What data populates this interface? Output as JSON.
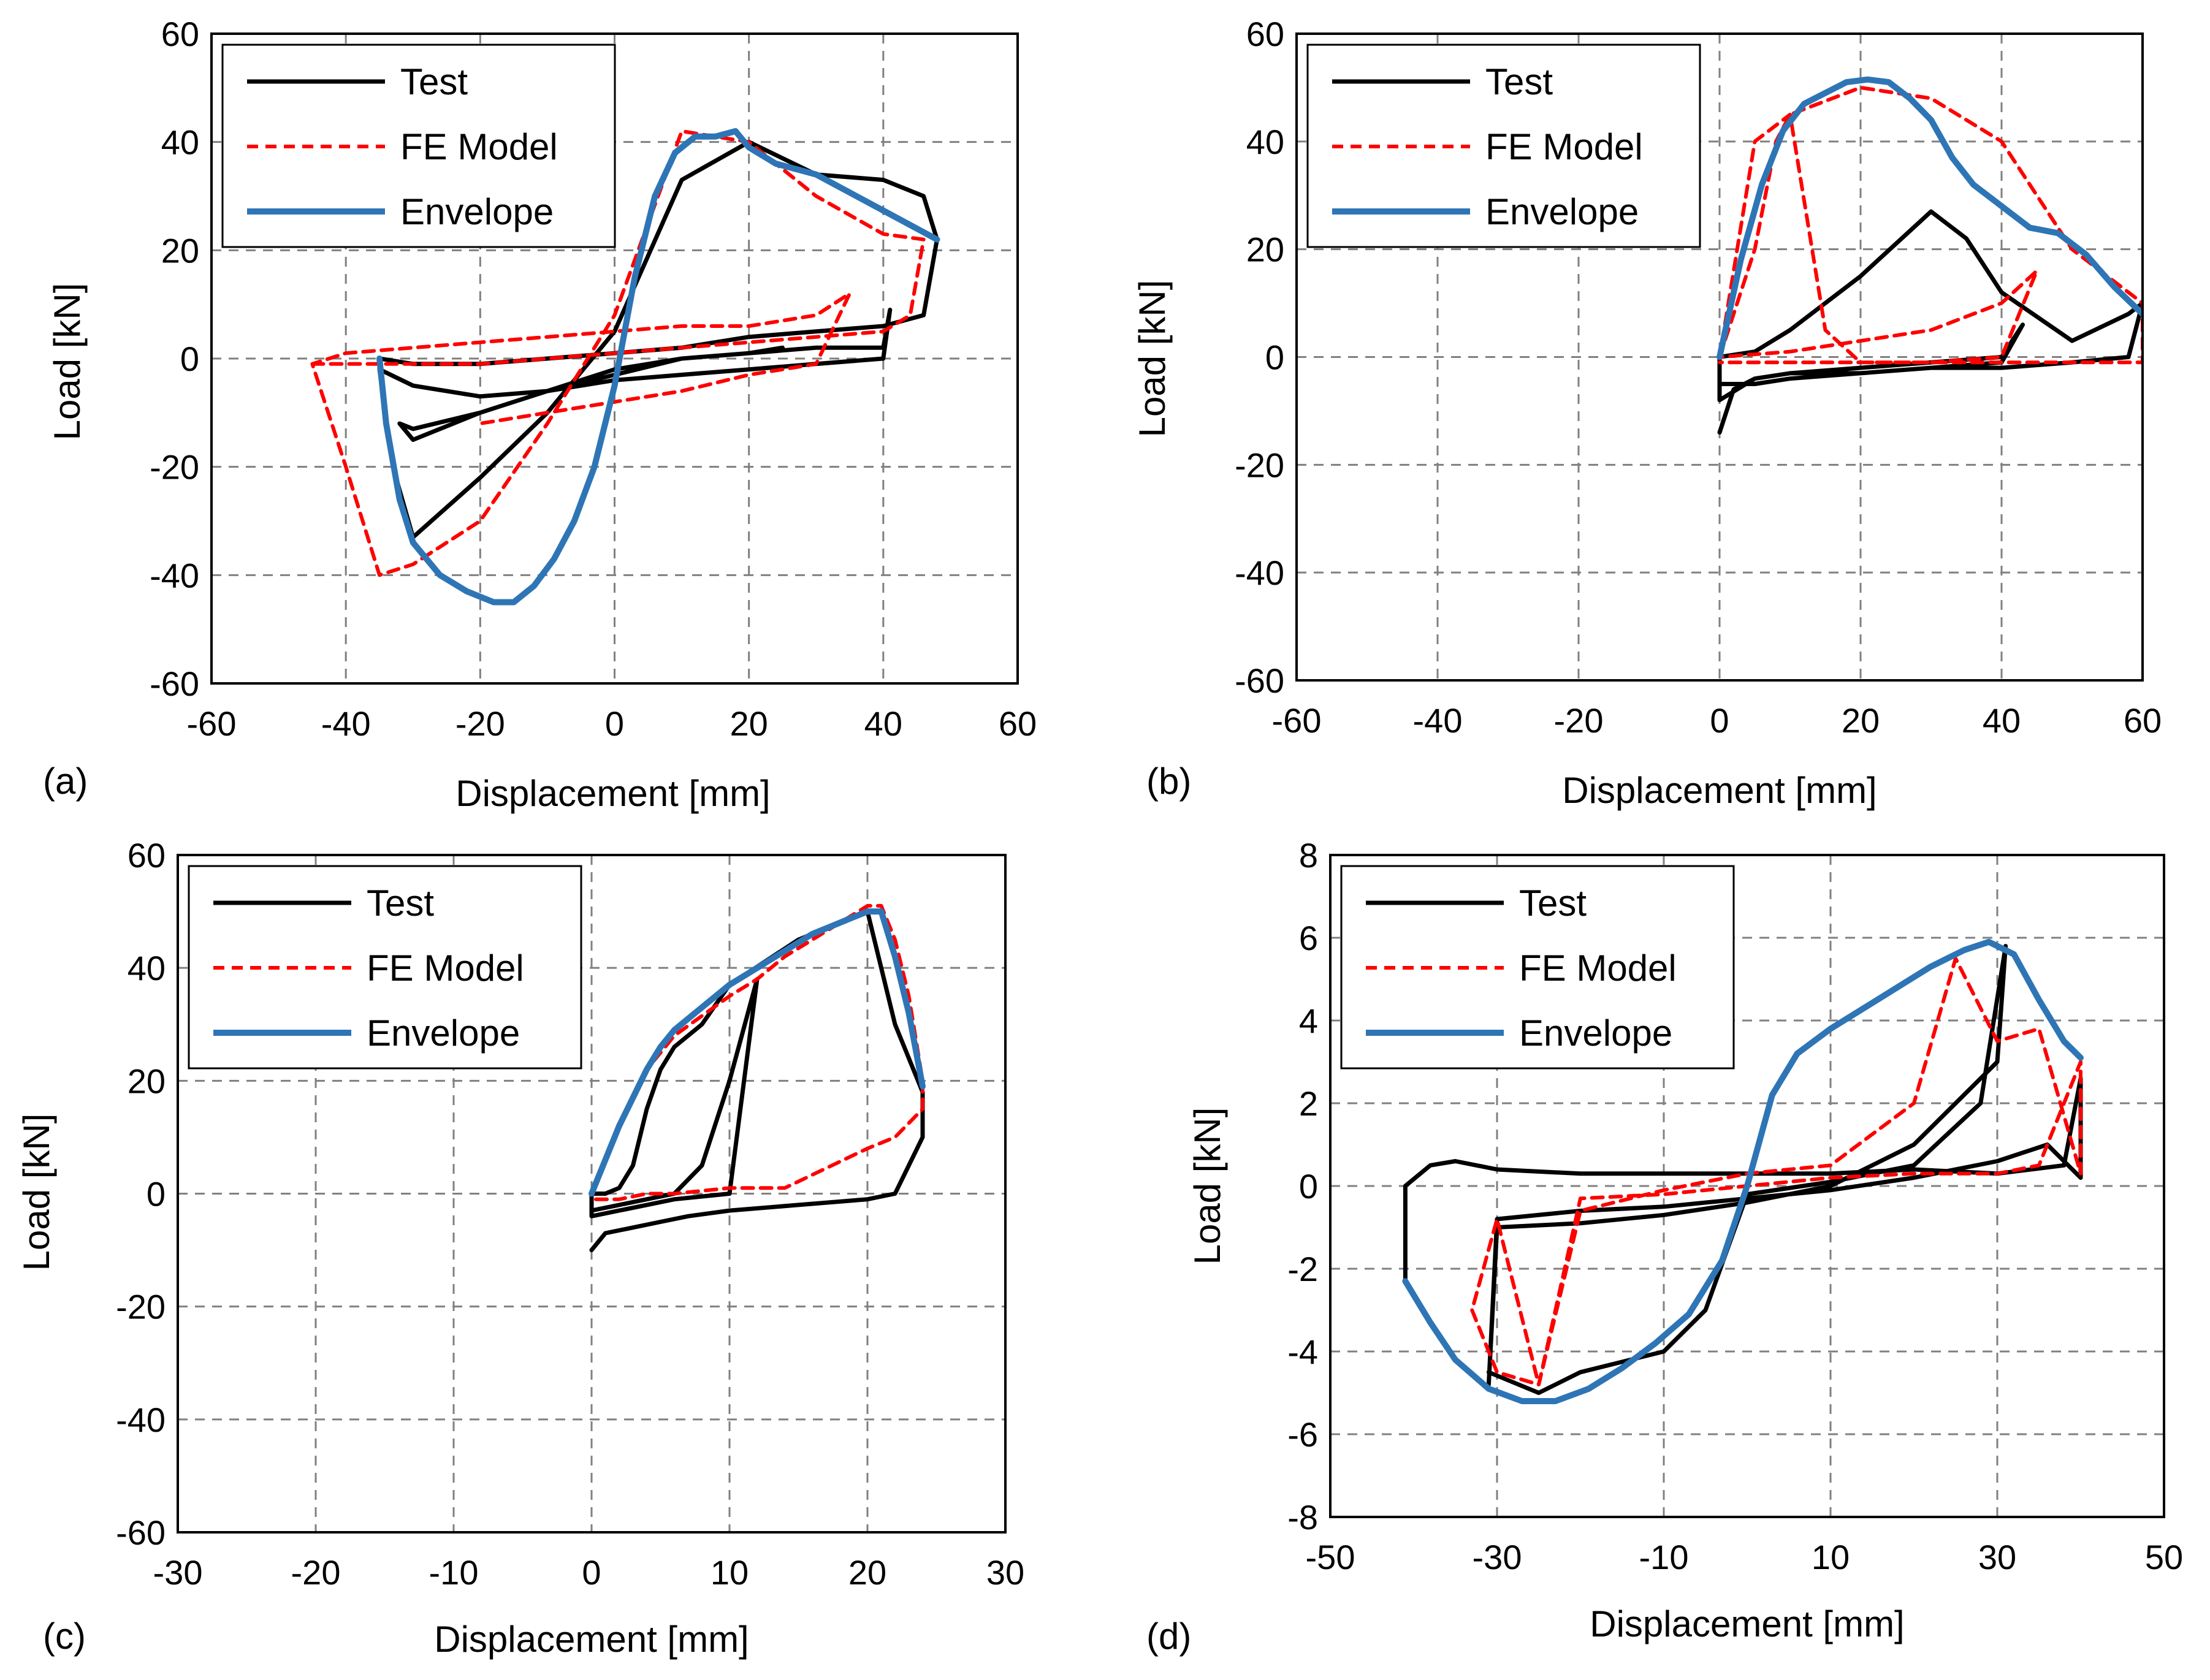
{
  "colors": {
    "test": "#000000",
    "fe_model": "#ff0000",
    "envelope": "#2e75b6",
    "grid": "#808080",
    "frame": "#000000"
  },
  "chart_data": [
    {
      "type": "line",
      "panel_label": "(a)",
      "xlabel": "Displacement [mm]",
      "ylabel": "Load [kN]",
      "xlim": [
        -60,
        60
      ],
      "ylim": [
        -60,
        60
      ],
      "xticks": [
        -60,
        -40,
        -20,
        0,
        20,
        40,
        60
      ],
      "yticks": [
        -60,
        -40,
        -20,
        0,
        20,
        40,
        60
      ],
      "grid": true,
      "legend_position": "top-left",
      "legend": [
        "Test",
        "FE Model",
        "Envelope"
      ],
      "series": [
        {
          "name": "Envelope",
          "style": "solid",
          "x": [
            -35,
            -34,
            -32,
            -30,
            -26,
            -22,
            -18,
            -15,
            -12,
            -9,
            -6,
            -3,
            0,
            3,
            6,
            9,
            12,
            15,
            18,
            20,
            24,
            30,
            36,
            42,
            48
          ],
          "y": [
            0,
            -12,
            -26,
            -34,
            -40,
            -43,
            -45,
            -45,
            -42,
            -37,
            -30,
            -20,
            -5,
            15,
            30,
            38,
            41,
            41,
            42,
            39,
            36,
            34,
            30,
            26,
            22
          ]
        },
        {
          "name": "Test",
          "style": "solid",
          "x": [
            -35,
            -30,
            -20,
            -10,
            0,
            10,
            20,
            30,
            40,
            46,
            48,
            46,
            40,
            30,
            20,
            10,
            0,
            -10,
            -20,
            -30,
            -33,
            -35,
            -30,
            -20,
            -10,
            0,
            10,
            20,
            30,
            40,
            41,
            40,
            30,
            20,
            10,
            0,
            -10,
            -20,
            -30,
            -32,
            -30,
            -20,
            -10,
            0,
            10,
            20,
            25
          ],
          "y": [
            0,
            -1,
            -1,
            0,
            1,
            2,
            4,
            5,
            6,
            8,
            22,
            30,
            33,
            34,
            40,
            33,
            5,
            -10,
            -22,
            -33,
            -20,
            -2,
            -5,
            -7,
            -6,
            -3,
            0,
            1,
            2,
            2,
            9,
            0,
            -1,
            -2,
            -3,
            -4,
            -6,
            -10,
            -15,
            -12,
            -13,
            -10,
            -6,
            -2,
            0,
            1,
            2
          ]
        },
        {
          "name": "FE Model",
          "style": "dashed",
          "x": [
            -45,
            -35,
            -20,
            -10,
            0,
            10,
            20,
            30,
            40,
            44,
            46,
            40,
            30,
            20,
            10,
            0,
            -10,
            -20,
            -30,
            -35,
            -40,
            -45,
            -40,
            -30,
            -20,
            -10,
            0,
            10,
            20,
            30,
            35,
            30,
            20,
            10,
            0,
            -10,
            -20
          ],
          "y": [
            -1,
            -1,
            -1,
            0,
            1,
            2,
            3,
            4,
            5,
            8,
            22,
            23,
            30,
            40,
            42,
            8,
            -12,
            -30,
            -38,
            -40,
            -20,
            -1,
            1,
            2,
            3,
            4,
            5,
            6,
            6,
            8,
            12,
            -1,
            -3,
            -6,
            -8,
            -10,
            -12
          ]
        }
      ]
    },
    {
      "type": "line",
      "panel_label": "(b)",
      "xlabel": "Displacement [mm]",
      "ylabel": "Load [kN]",
      "xlim": [
        -60,
        60
      ],
      "ylim": [
        -60,
        60
      ],
      "xticks": [
        -60,
        -40,
        -20,
        0,
        20,
        40,
        60
      ],
      "yticks": [
        -60,
        -40,
        -20,
        0,
        20,
        40,
        60
      ],
      "grid": true,
      "legend_position": "top-left",
      "legend": [
        "Test",
        "FE Model",
        "Envelope"
      ],
      "series": [
        {
          "name": "Envelope",
          "style": "solid",
          "x": [
            0,
            3,
            6,
            9,
            12,
            15,
            18,
            21,
            24,
            27,
            30,
            33,
            36,
            40,
            44,
            48,
            52,
            56,
            60
          ],
          "y": [
            0,
            18,
            32,
            42,
            47,
            49,
            51,
            51.5,
            51,
            48,
            44,
            37,
            32,
            28,
            24,
            23,
            19,
            13,
            8
          ]
        },
        {
          "name": "Test",
          "style": "solid",
          "x": [
            0,
            2,
            5,
            10,
            20,
            30,
            40,
            50,
            58,
            60,
            58,
            50,
            40,
            35,
            30,
            20,
            10,
            5,
            0,
            0,
            5,
            10,
            20,
            30,
            40,
            43,
            40,
            30,
            20,
            10,
            5,
            0
          ],
          "y": [
            -14,
            -6,
            -4,
            -3,
            -3,
            -2,
            -2,
            -1,
            0,
            10,
            8,
            3,
            12,
            22,
            27,
            15,
            5,
            1,
            0,
            -8,
            -4,
            -3,
            -2,
            -1,
            0,
            6,
            -1,
            -2,
            -3,
            -4,
            -5,
            -5
          ]
        },
        {
          "name": "FE Model",
          "style": "dashed",
          "x": [
            0,
            5,
            8,
            10,
            20,
            30,
            40,
            50,
            60,
            60,
            50,
            40,
            30,
            20,
            15,
            10,
            5,
            0,
            10,
            20,
            30,
            40,
            45,
            40,
            30,
            20,
            10,
            0
          ],
          "y": [
            0,
            20,
            40,
            45,
            50,
            48,
            40,
            20,
            10,
            -1,
            -1,
            -1,
            -1,
            -1,
            5,
            45,
            40,
            0,
            1,
            3,
            5,
            10,
            16,
            0,
            -1,
            -1,
            -1,
            -1
          ]
        }
      ]
    },
    {
      "type": "line",
      "panel_label": "(c)",
      "xlabel": "Displacement [mm]",
      "ylabel": "Load [kN]",
      "xlim": [
        -30,
        30
      ],
      "ylim": [
        -60,
        60
      ],
      "xticks": [
        -30,
        -20,
        -10,
        0,
        10,
        20,
        30
      ],
      "yticks": [
        -60,
        -40,
        -20,
        0,
        20,
        40,
        60
      ],
      "grid": true,
      "legend_position": "top-left",
      "legend": [
        "Test",
        "FE Model",
        "Envelope"
      ],
      "series": [
        {
          "name": "Envelope",
          "style": "solid",
          "x": [
            0,
            1,
            2,
            3,
            4,
            5,
            6,
            8,
            10,
            12,
            14,
            16,
            18,
            19,
            20,
            21,
            22,
            23,
            24
          ],
          "y": [
            0,
            6,
            12,
            17,
            22,
            26,
            29,
            33,
            37,
            40,
            43,
            46,
            48,
            49,
            50,
            50,
            42,
            32,
            19
          ]
        },
        {
          "name": "Test",
          "style": "solid",
          "x": [
            0,
            1,
            3,
            5,
            7,
            10,
            15,
            20,
            22,
            24,
            24,
            22,
            20,
            15,
            10,
            8,
            6,
            5,
            4,
            3,
            2,
            1,
            0,
            0,
            2,
            4,
            6,
            10,
            12,
            10,
            8,
            6,
            4,
            2,
            0
          ],
          "y": [
            -10,
            -7,
            -6,
            -5,
            -4,
            -3,
            -2,
            -1,
            0,
            10,
            18,
            30,
            50,
            45,
            37,
            30,
            26,
            22,
            15,
            5,
            1,
            0,
            0,
            -4,
            -3,
            -2,
            -1,
            0,
            38,
            20,
            5,
            0,
            -1,
            -2,
            -3
          ]
        },
        {
          "name": "FE Model",
          "style": "dashed",
          "x": [
            0,
            2,
            4,
            6,
            10,
            12,
            14,
            20,
            21,
            22,
            23,
            24,
            24,
            22,
            20,
            14,
            10,
            6,
            4,
            2,
            0
          ],
          "y": [
            0,
            12,
            22,
            28,
            35,
            38,
            42,
            51,
            51,
            45,
            35,
            20,
            15,
            10,
            8,
            1,
            1,
            0,
            0,
            -1,
            -1
          ]
        }
      ]
    },
    {
      "type": "line",
      "panel_label": "(d)",
      "xlabel": "Displacement [mm]",
      "ylabel": "Load [kN]",
      "xlim": [
        -50,
        50
      ],
      "ylim": [
        -8,
        8
      ],
      "xticks": [
        -50,
        -30,
        -10,
        10,
        30,
        50
      ],
      "yticks": [
        -8,
        -6,
        -4,
        -2,
        0,
        2,
        4,
        6,
        8
      ],
      "grid": true,
      "legend_position": "top-left",
      "legend": [
        "Test",
        "FE Model",
        "Envelope"
      ],
      "series": [
        {
          "name": "Envelope",
          "style": "solid",
          "x": [
            -41,
            -38,
            -35,
            -31,
            -27,
            -23,
            -19,
            -15,
            -11,
            -7,
            -3,
            0,
            3,
            6,
            10,
            14,
            18,
            22,
            26,
            29,
            32,
            35,
            38,
            40
          ],
          "y": [
            -2.3,
            -3.3,
            -4.2,
            -4.9,
            -5.2,
            -5.2,
            -4.9,
            -4.4,
            -3.8,
            -3.1,
            -1.8,
            0,
            2.2,
            3.2,
            3.8,
            4.3,
            4.8,
            5.3,
            5.7,
            5.9,
            5.6,
            4.5,
            3.5,
            3.1
          ]
        },
        {
          "name": "Test",
          "style": "solid",
          "x": [
            -41,
            -41,
            -38,
            -35,
            -30,
            -20,
            -10,
            0,
            10,
            20,
            30,
            38,
            40,
            40,
            36,
            30,
            20,
            10,
            0,
            -10,
            -20,
            -30,
            -31,
            -30,
            -20,
            -10,
            0,
            10,
            20,
            30,
            31,
            28,
            20,
            10,
            0,
            -5,
            -10,
            -20,
            -25,
            -31
          ],
          "y": [
            -2.3,
            0,
            0.5,
            0.6,
            0.4,
            0.3,
            0.3,
            0.3,
            0.3,
            0.4,
            0.3,
            0.5,
            2.6,
            0.2,
            1.0,
            0.6,
            0.2,
            -0.1,
            -0.3,
            -0.5,
            -0.6,
            -0.8,
            -4.8,
            -1.0,
            -0.9,
            -0.7,
            -0.4,
            0,
            1.0,
            3.0,
            5.8,
            2.0,
            0.5,
            0.1,
            -0.2,
            -3.0,
            -4.0,
            -4.5,
            -5.0,
            -4.5
          ]
        },
        {
          "name": "FE Model",
          "style": "dashed",
          "x": [
            -33,
            -30,
            -25,
            -20,
            -10,
            0,
            10,
            20,
            30,
            35,
            40,
            40,
            35,
            30,
            25,
            20,
            10,
            0,
            -10,
            -20,
            -25,
            -30,
            -33
          ],
          "y": [
            -3.0,
            -4.5,
            -4.8,
            -0.3,
            -0.2,
            0,
            0.2,
            0.3,
            0.3,
            0.5,
            3.0,
            0.3,
            3.8,
            3.5,
            5.5,
            2.0,
            0.5,
            0.3,
            -0.1,
            -0.6,
            -4.8,
            -0.8,
            -3.0
          ]
        }
      ]
    }
  ]
}
